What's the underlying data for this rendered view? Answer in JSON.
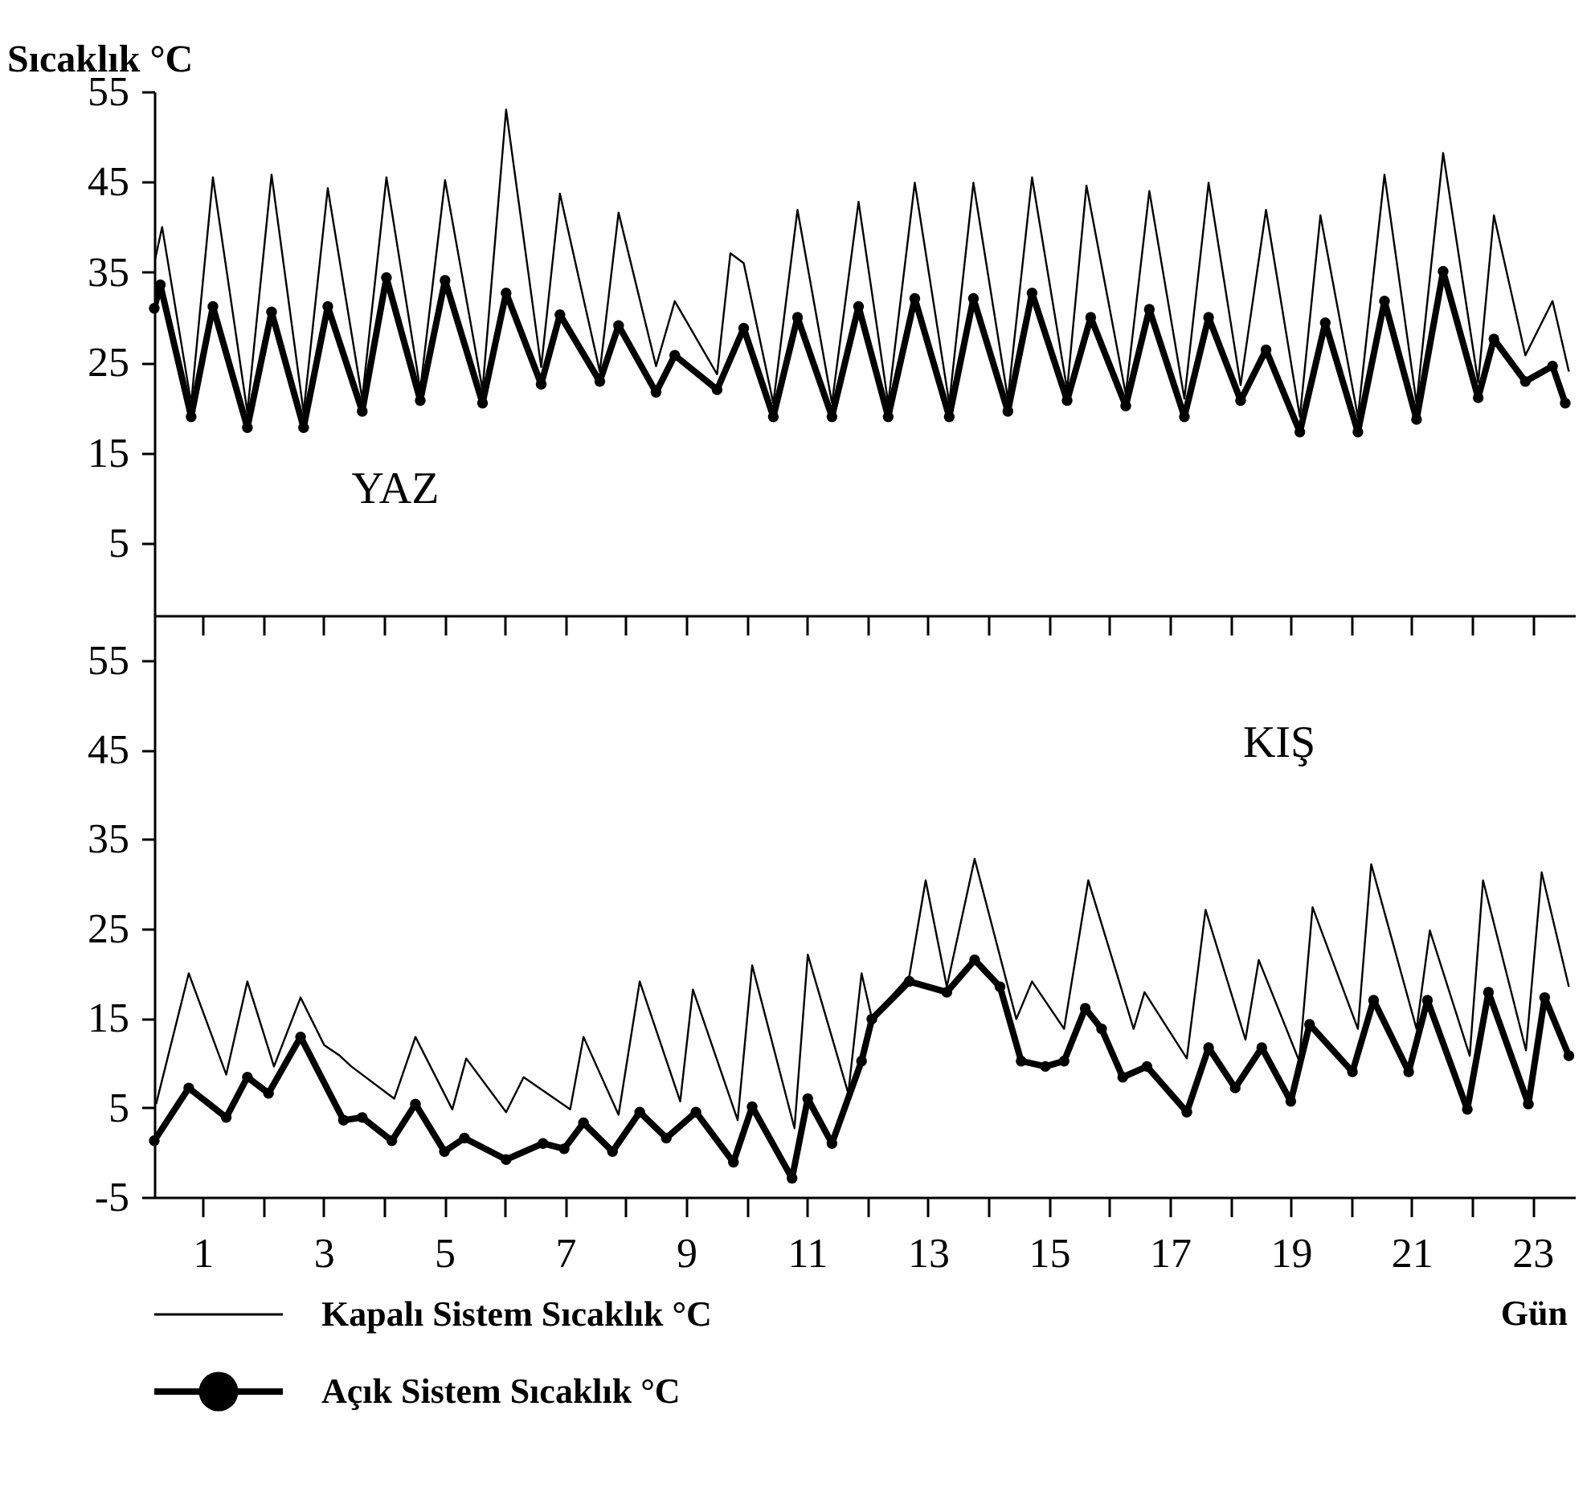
{
  "chart_data": [
    {
      "type": "line",
      "ylabel": "Sıcaklık °C",
      "annotations": [
        "YAZ"
      ],
      "xlim": [
        0.2,
        23.7
      ],
      "xticks": [
        1,
        {
          "value": 2,
          "label": null
        },
        3,
        {
          "value": 4,
          "label": null
        },
        5,
        {
          "value": 6,
          "label": null
        },
        7,
        {
          "value": 8,
          "label": null
        },
        9,
        {
          "value": 10,
          "label": null
        },
        11,
        {
          "value": 12,
          "label": null
        },
        13,
        {
          "value": 14,
          "label": null
        },
        15,
        {
          "value": 16,
          "label": null
        },
        17,
        {
          "value": 18,
          "label": null
        },
        19,
        {
          "value": 20,
          "label": null
        },
        21,
        {
          "value": 22,
          "label": null
        },
        23
      ],
      "ylim": [
        -3,
        55
      ],
      "yticks": [
        5,
        15,
        25,
        35,
        45,
        55
      ],
      "tick_labels": "y",
      "series": [
        {
          "color": "#000000",
          "x": [
            0.2,
            0.33,
            0.81,
            1.17,
            1.74,
            2.14,
            2.67,
            3.07,
            3.64,
            4.04,
            4.6,
            5.01,
            5.63,
            6.02,
            6.6,
            6.91,
            7.57,
            7.88,
            8.5,
            8.81,
            9.51,
            9.73,
            9.95,
            10.44,
            10.84,
            11.41,
            11.85,
            12.34,
            12.78,
            13.35,
            13.75,
            14.32,
            14.72,
            15.3,
            15.62,
            16.27,
            16.66,
            17.24,
            17.64,
            18.17,
            18.59,
            19.15,
            19.49,
            20.11,
            20.55,
            21.08,
            21.52,
            22.1,
            22.36,
            22.88,
            23.33,
            23.6
          ],
          "values": [
            36,
            40,
            20.5,
            45.5,
            19.5,
            45.8,
            19.5,
            44.3,
            21,
            45.5,
            22,
            45.2,
            22,
            53,
            24.5,
            43.7,
            24,
            41.6,
            24.6,
            31.8,
            23.7,
            37.1,
            36,
            20.5,
            41.9,
            20.5,
            42.8,
            20.5,
            44.9,
            20.5,
            44.9,
            21,
            45.5,
            22,
            44.6,
            21.5,
            44,
            21,
            44.9,
            22.5,
            41.9,
            19,
            41.3,
            19,
            45.8,
            20.5,
            48.2,
            22.8,
            41.3,
            25.8,
            31.8,
            24
          ]
        },
        {
          "color": "#000000",
          "marker": "circle",
          "x": [
            0.2,
            0.3,
            0.81,
            1.17,
            1.74,
            2.14,
            2.67,
            3.07,
            3.64,
            4.04,
            4.6,
            5.01,
            5.63,
            6.02,
            6.6,
            6.91,
            7.57,
            7.88,
            8.5,
            8.81,
            9.51,
            9.95,
            10.44,
            10.84,
            11.41,
            11.85,
            12.34,
            12.78,
            13.35,
            13.75,
            14.32,
            14.72,
            15.3,
            15.69,
            16.27,
            16.66,
            17.24,
            17.64,
            18.17,
            18.59,
            19.15,
            19.57,
            20.11,
            20.55,
            21.08,
            21.52,
            22.1,
            22.36,
            22.88,
            23.33,
            23.54
          ],
          "values": [
            31,
            33.6,
            19,
            31.2,
            17.8,
            30.6,
            17.8,
            31.2,
            19.6,
            34.4,
            20.8,
            34.1,
            20.5,
            32.7,
            22.6,
            30.3,
            22.9,
            29.1,
            21.7,
            25.8,
            22,
            28.8,
            19,
            30,
            19,
            31.2,
            19,
            32.1,
            19,
            32.1,
            19.6,
            32.7,
            20.8,
            30,
            20.2,
            30.9,
            19,
            30,
            20.8,
            26.4,
            17.3,
            29.4,
            17.3,
            31.8,
            18.7,
            35.1,
            21.1,
            27.6,
            22.9,
            24.6,
            20.5
          ]
        }
      ]
    },
    {
      "type": "line",
      "xlabel": "Gün",
      "annotations": [
        "KIŞ"
      ],
      "xlim": [
        0.2,
        23.7
      ],
      "xticks": [
        1,
        {
          "value": 2,
          "label": null
        },
        3,
        {
          "value": 4,
          "label": null
        },
        5,
        {
          "value": 6,
          "label": null
        },
        7,
        {
          "value": 8,
          "label": null
        },
        9,
        {
          "value": 10,
          "label": null
        },
        11,
        {
          "value": 12,
          "label": null
        },
        13,
        {
          "value": 14,
          "label": null
        },
        15,
        {
          "value": 16,
          "label": null
        },
        17,
        {
          "value": 18,
          "label": null
        },
        19,
        {
          "value": 20,
          "label": null
        },
        21,
        {
          "value": 22,
          "label": null
        },
        23
      ],
      "ylim": [
        -5,
        60
      ],
      "yticks": [
        -5,
        5,
        15,
        25,
        35,
        45,
        55
      ],
      "legend": "bottom left",
      "series": [
        {
          "name": "Kapalı  Sistem   Sıcaklık °C",
          "color": "#000000",
          "x": [
            0.23,
            0.77,
            1.39,
            1.74,
            2.18,
            2.62,
            3.01,
            3.27,
            3.46,
            4.17,
            4.52,
            5.13,
            5.36,
            6.02,
            6.31,
            7.08,
            7.3,
            7.88,
            8.23,
            8.9,
            9.11,
            9.85,
            10.09,
            10.79,
            11.01,
            11.68,
            11.9,
            12.07,
            12.69,
            12.96,
            13.31,
            13.77,
            14.46,
            14.72,
            15.25,
            15.65,
            16.4,
            16.58,
            17.28,
            17.59,
            18.25,
            18.47,
            19.14,
            19.36,
            20.11,
            20.33,
            21.08,
            21.3,
            21.96,
            22.18,
            22.89,
            23.15,
            23.6
          ],
          "values": [
            5.4,
            20,
            8.7,
            19.1,
            9.6,
            17.3,
            12,
            10.8,
            9.6,
            6,
            12.9,
            4.8,
            10.5,
            4.5,
            8.4,
            4.8,
            12.9,
            4.2,
            19.1,
            5.7,
            18.2,
            3.6,
            20.9,
            2.7,
            22.1,
            6.6,
            20,
            15,
            19.7,
            30.4,
            18.5,
            32.8,
            14.9,
            19.1,
            13.8,
            30.4,
            13.8,
            17.9,
            10.5,
            27.1,
            12.6,
            21.5,
            10.2,
            27.4,
            13.8,
            32.2,
            13.8,
            24.8,
            10.8,
            30.4,
            11.4,
            31.3,
            18.5
          ]
        },
        {
          "name": "Açık Sistem Sıcaklık °C",
          "color": "#000000",
          "marker": "circle",
          "x": [
            0.2,
            0.77,
            1.39,
            1.74,
            2.09,
            2.62,
            3.33,
            3.64,
            4.13,
            4.52,
            5.0,
            5.33,
            6.02,
            6.63,
            6.98,
            7.3,
            7.78,
            8.23,
            8.67,
            9.16,
            9.78,
            10.09,
            10.75,
            11.01,
            11.41,
            11.9,
            12.07,
            12.69,
            13.31,
            13.77,
            14.19,
            14.54,
            14.94,
            15.25,
            15.6,
            15.87,
            16.22,
            16.62,
            17.28,
            17.64,
            18.08,
            18.52,
            19.0,
            19.31,
            20.02,
            20.37,
            20.95,
            21.26,
            21.92,
            22.27,
            22.93,
            23.2,
            23.6
          ],
          "values": [
            1.3,
            7.2,
            3.9,
            8.4,
            6.6,
            12.9,
            3.6,
            3.9,
            1.3,
            5.4,
            0.1,
            1.6,
            -0.8,
            1,
            0.4,
            3.3,
            0.1,
            4.5,
            1.6,
            4.5,
            -1.1,
            5.1,
            -2.9,
            6,
            1,
            10.2,
            14.9,
            19.1,
            17.9,
            21.5,
            18.5,
            10.2,
            9.6,
            10.2,
            16.1,
            13.8,
            8.4,
            9.6,
            4.5,
            11.7,
            7.2,
            11.7,
            5.7,
            14.3,
            9,
            17,
            9,
            17,
            4.8,
            17.9,
            5.4,
            17.3,
            10.8
          ]
        }
      ]
    }
  ]
}
